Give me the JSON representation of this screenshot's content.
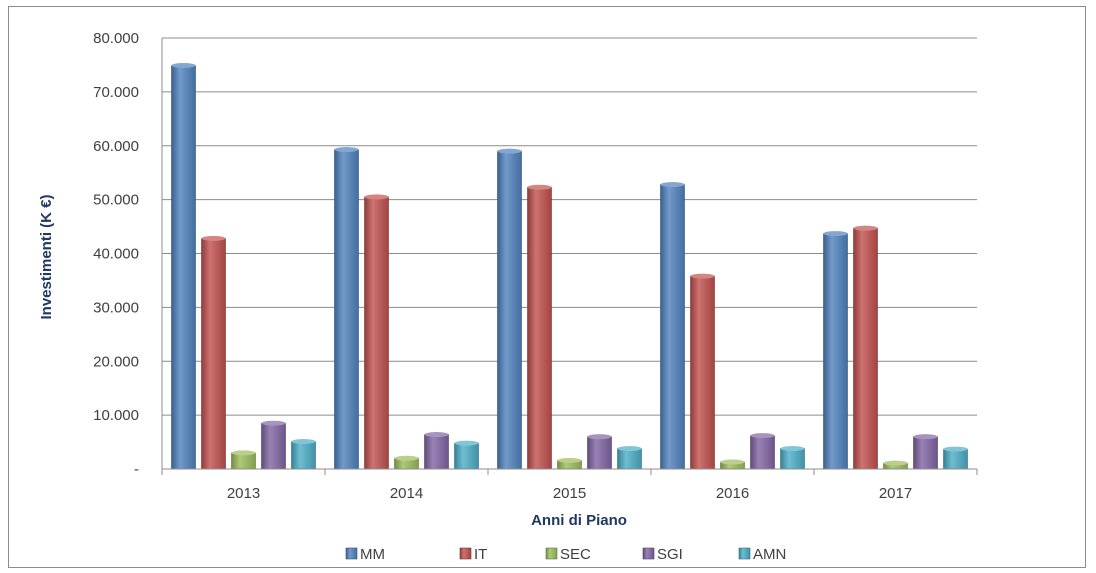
{
  "chart_data": {
    "type": "bar",
    "title": "",
    "xlabel": "Anni di Piano",
    "ylabel": "Investimenti (K €)",
    "categories": [
      "2013",
      "2014",
      "2015",
      "2016",
      "2017"
    ],
    "ylim": [
      0,
      80000
    ],
    "yticks": [
      0,
      10000,
      20000,
      30000,
      40000,
      50000,
      60000,
      70000,
      80000
    ],
    "ytick_labels": [
      "-",
      "10.000",
      "20.000",
      "30.000",
      "40.000",
      "50.000",
      "60.000",
      "70.000",
      "80.000"
    ],
    "grid": true,
    "legend_position": "bottom",
    "series": [
      {
        "name": "MM",
        "color": "#4f81bd",
        "values": [
          74900,
          59300,
          59000,
          52800,
          43700
        ]
      },
      {
        "name": "IT",
        "color": "#c0504d",
        "values": [
          42800,
          50500,
          52300,
          35800,
          44700
        ]
      },
      {
        "name": "SEC",
        "color": "#9bbb59",
        "values": [
          3000,
          2000,
          1600,
          1300,
          1100
        ]
      },
      {
        "name": "SGI",
        "color": "#8064a2",
        "values": [
          8500,
          6400,
          6000,
          6200,
          6000
        ]
      },
      {
        "name": "AMN",
        "color": "#4bacc6",
        "values": [
          5100,
          4800,
          3800,
          3800,
          3700
        ]
      }
    ]
  }
}
